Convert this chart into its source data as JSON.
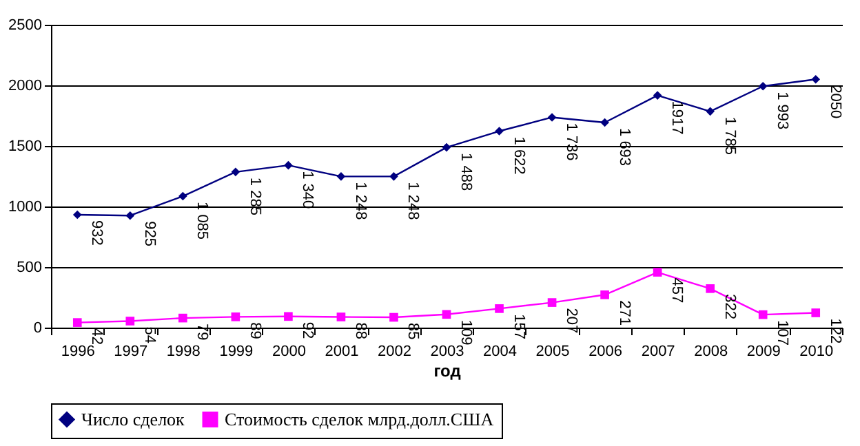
{
  "chart_data": {
    "type": "line",
    "xlabel": "год",
    "categories": [
      "1996",
      "1997",
      "1998",
      "1999",
      "2000",
      "2001",
      "2002",
      "2003",
      "2004",
      "2005",
      "2006",
      "2007",
      "2008",
      "2009",
      "2010"
    ],
    "series": [
      {
        "name": "Число сделок",
        "color": "#000080",
        "marker": "diamond",
        "values": [
          932,
          925,
          1085,
          1285,
          1340,
          1248,
          1248,
          1488,
          1622,
          1736,
          1693,
          1917,
          1785,
          1993,
          2050
        ],
        "value_labels": [
          "932",
          "925",
          "1 085",
          "1 285",
          "1 340",
          "1 248",
          "1 248",
          "1 488",
          "1 622",
          "1 736",
          "1 693",
          "1917",
          "1 785",
          "1 993",
          "2050"
        ]
      },
      {
        "name": "Стоимость сделок млрд.долл.США",
        "color": "#ff00ff",
        "marker": "square",
        "values": [
          42,
          54,
          79,
          89,
          92,
          88,
          85,
          109,
          157,
          207,
          271,
          457,
          322,
          107,
          122
        ],
        "value_labels": [
          "42",
          "54",
          "79",
          "89",
          "92",
          "88",
          "85",
          "109",
          "157",
          "207",
          "271",
          "457",
          "322",
          "107",
          "122"
        ]
      }
    ],
    "ylim": [
      0,
      2500
    ],
    "yticks": [
      0,
      500,
      1000,
      1500,
      2000,
      2500
    ],
    "grid": "y",
    "legend": "bottom"
  }
}
